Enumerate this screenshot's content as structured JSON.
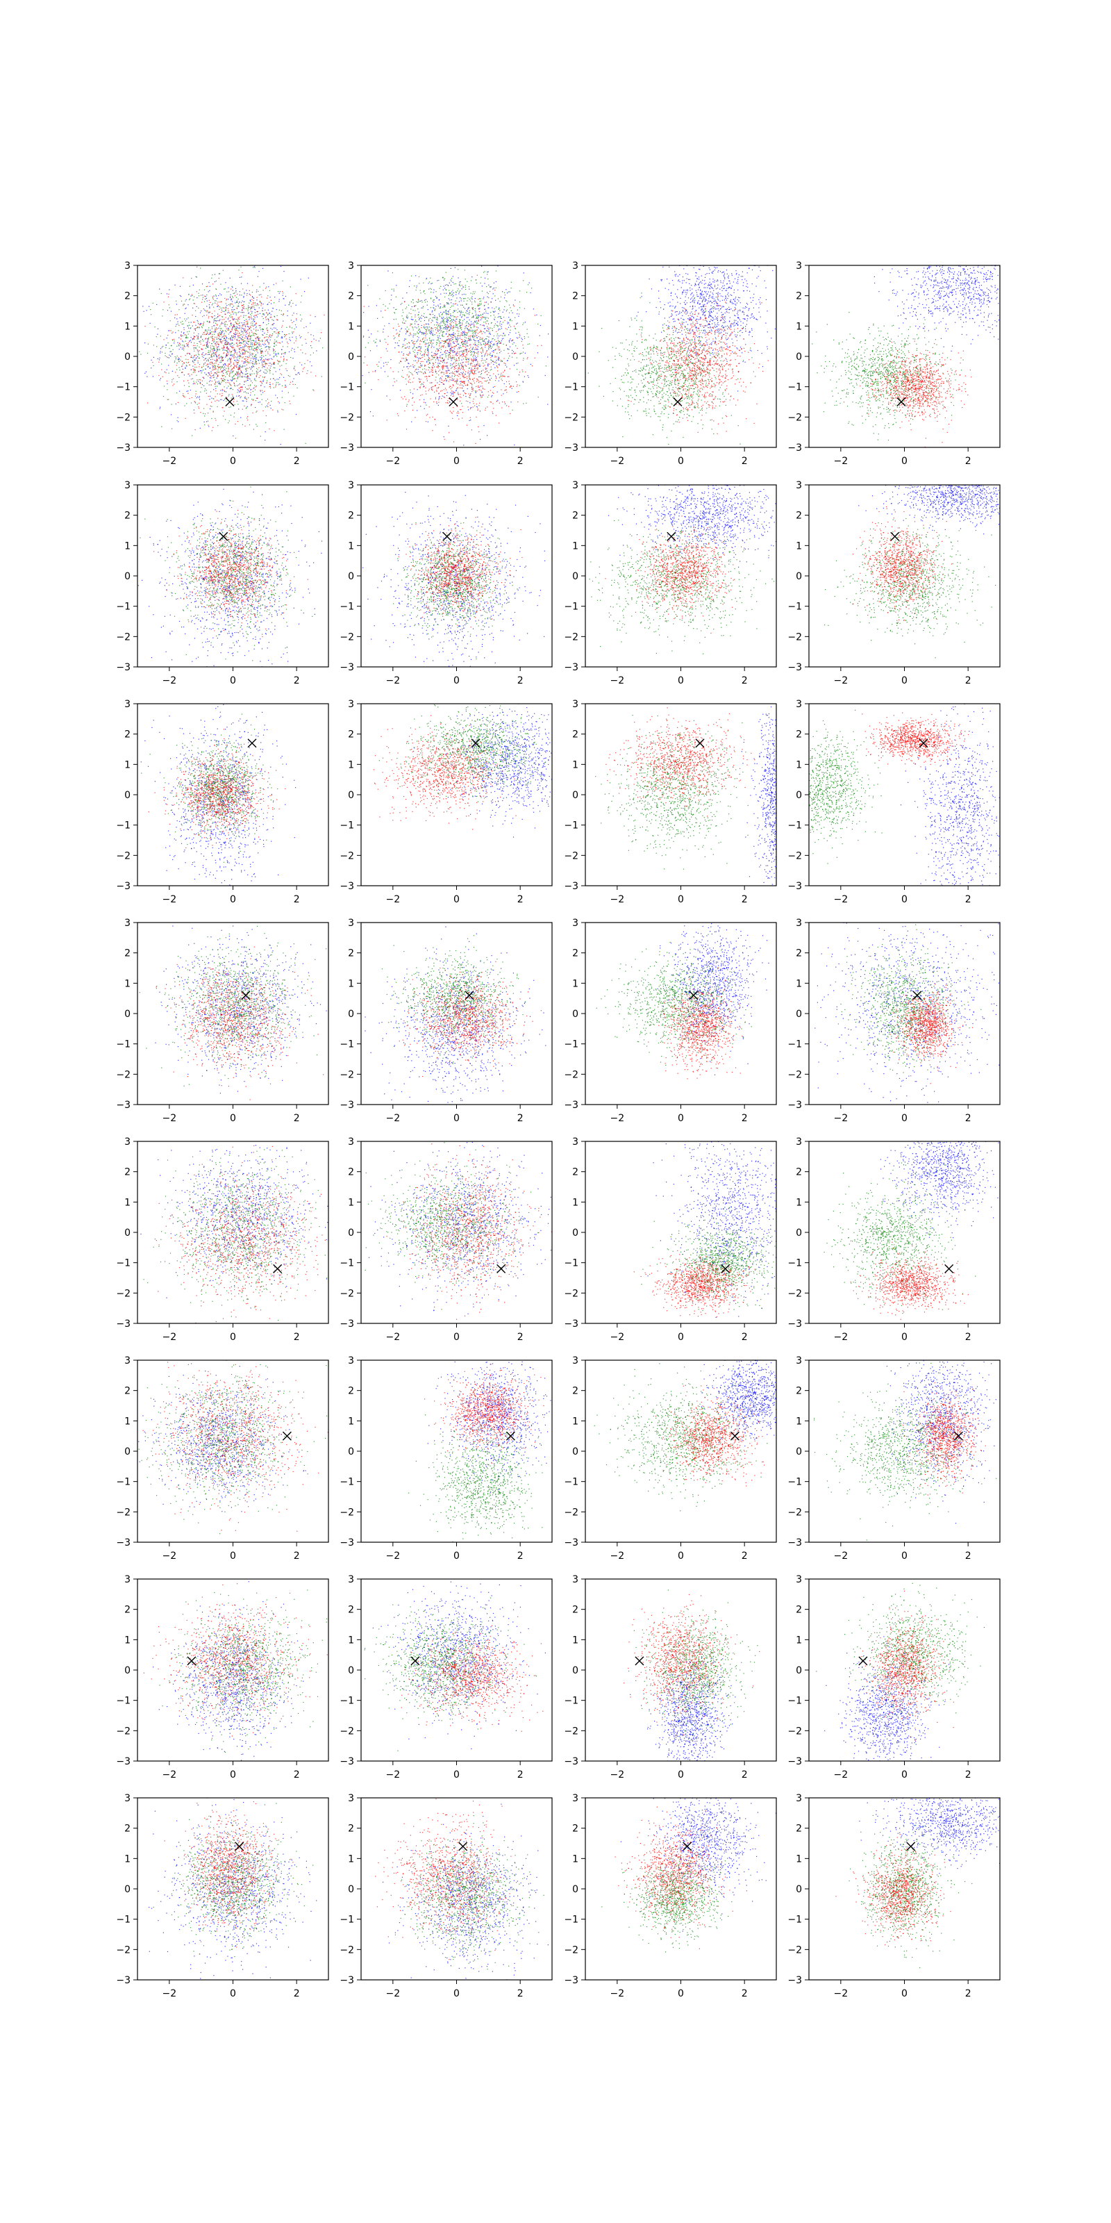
{
  "chart_data": {
    "type": "scatter",
    "layout": {
      "rows": 8,
      "cols": 4
    },
    "shared_axes": {
      "xlim": [
        -3,
        3
      ],
      "ylim": [
        -3,
        3
      ],
      "xticks": [
        -2,
        0,
        2
      ],
      "yticks": [
        -3,
        -2,
        -1,
        0,
        1,
        2,
        3
      ],
      "grid": false
    },
    "series_colors": {
      "red": "#ff0000",
      "green": "#008000",
      "blue": "#0000ff",
      "marker": "#000000"
    },
    "marker_glyph": "x",
    "rows": [
      {
        "marker": [
          -0.1,
          -1.5
        ],
        "panels": [
          {
            "blue": [
              0.0,
              0.4,
              1.1,
              1.1
            ],
            "green": [
              0.0,
              0.3,
              1.1,
              1.1
            ],
            "red": [
              0.0,
              0.2,
              1.0,
              1.0
            ]
          },
          {
            "green": [
              0.0,
              0.9,
              1.1,
              0.9
            ],
            "blue": [
              0.0,
              0.5,
              1.1,
              1.0
            ],
            "red": [
              0.0,
              -0.3,
              0.9,
              0.9
            ]
          },
          {
            "blue": [
              1.0,
              1.6,
              0.8,
              0.8
            ],
            "green": [
              -0.3,
              -0.6,
              0.8,
              0.8
            ],
            "red": [
              0.6,
              -0.2,
              0.7,
              0.8
            ]
          },
          {
            "blue": [
              1.8,
              2.3,
              1.0,
              0.7
            ],
            "green": [
              -0.5,
              -0.6,
              0.8,
              0.7
            ],
            "red": [
              0.4,
              -1.0,
              0.6,
              0.5
            ]
          }
        ]
      },
      {
        "marker": [
          -0.3,
          1.3
        ],
        "panels": [
          {
            "blue": [
              0.0,
              -0.2,
              1.0,
              1.2
            ],
            "green": [
              0.0,
              0.0,
              0.8,
              0.9
            ],
            "red": [
              0.0,
              0.1,
              0.7,
              0.7
            ]
          },
          {
            "blue": [
              0.0,
              -0.3,
              1.0,
              1.2
            ],
            "green": [
              -0.1,
              -0.2,
              0.7,
              0.7
            ],
            "red": [
              0.0,
              0.1,
              0.6,
              0.6
            ]
          },
          {
            "blue": [
              0.8,
              2.0,
              1.0,
              0.6
            ],
            "green": [
              -0.2,
              -0.3,
              1.1,
              0.8
            ],
            "red": [
              0.1,
              0.1,
              0.6,
              0.6
            ]
          },
          {
            "blue": [
              1.8,
              2.6,
              1.0,
              0.4
            ],
            "green": [
              0.2,
              -0.2,
              0.9,
              0.8
            ],
            "red": [
              -0.1,
              0.3,
              0.5,
              0.6
            ]
          }
        ]
      },
      {
        "marker": [
          0.6,
          1.7
        ],
        "panels": [
          {
            "blue": [
              -0.4,
              -0.2,
              0.8,
              1.3
            ],
            "green": [
              -0.4,
              0.2,
              0.6,
              0.7
            ],
            "red": [
              -0.4,
              0.0,
              0.6,
              0.6
            ]
          },
          {
            "blue": [
              1.8,
              1.0,
              0.8,
              0.8
            ],
            "green": [
              0.6,
              1.5,
              0.9,
              0.6
            ],
            "red": [
              -0.4,
              0.7,
              0.8,
              0.6
            ]
          },
          {
            "blue": [
              3.0,
              0.0,
              0.3,
              1.5
            ],
            "green": [
              -0.2,
              0.0,
              0.9,
              0.9
            ],
            "red": [
              0.0,
              1.1,
              0.8,
              0.6
            ]
          },
          {
            "blue": [
              1.8,
              -0.6,
              0.6,
              1.4
            ],
            "green": [
              -2.4,
              0.3,
              0.6,
              0.8
            ],
            "red": [
              0.3,
              1.8,
              0.6,
              0.3
            ]
          }
        ]
      },
      {
        "marker": [
          0.4,
          0.6
        ],
        "panels": [
          {
            "blue": [
              0.2,
              0.2,
              1.0,
              1.0
            ],
            "green": [
              0.1,
              0.2,
              0.9,
              0.9
            ],
            "red": [
              0.0,
              -0.2,
              0.8,
              0.8
            ]
          },
          {
            "blue": [
              0.0,
              -0.6,
              1.0,
              1.1
            ],
            "green": [
              0.0,
              0.5,
              0.8,
              0.7
            ],
            "red": [
              0.3,
              -0.2,
              0.7,
              0.6
            ]
          },
          {
            "blue": [
              1.0,
              1.0,
              0.6,
              0.9
            ],
            "green": [
              -0.1,
              0.3,
              0.8,
              0.7
            ],
            "red": [
              0.6,
              -0.5,
              0.5,
              0.6
            ]
          },
          {
            "blue": [
              0.3,
              0.3,
              1.3,
              1.3
            ],
            "green": [
              0.0,
              0.2,
              0.7,
              0.8
            ],
            "red": [
              0.7,
              -0.4,
              0.4,
              0.5
            ]
          }
        ]
      },
      {
        "marker": [
          1.4,
          -1.2
        ],
        "panels": [
          {
            "blue": [
              0.3,
              0.6,
              1.0,
              1.0
            ],
            "green": [
              0.2,
              0.0,
              1.0,
              1.0
            ],
            "red": [
              0.4,
              -0.3,
              1.0,
              1.0
            ]
          },
          {
            "blue": [
              0.3,
              0.3,
              1.1,
              1.1
            ],
            "green": [
              -0.3,
              0.3,
              0.9,
              0.8
            ],
            "red": [
              0.4,
              0.0,
              0.8,
              1.0
            ]
          },
          {
            "blue": [
              1.6,
              0.8,
              0.8,
              1.2
            ],
            "green": [
              1.3,
              -1.0,
              0.7,
              0.6
            ],
            "red": [
              0.6,
              -1.7,
              0.6,
              0.4
            ]
          },
          {
            "blue": [
              1.2,
              2.1,
              0.7,
              0.8
            ],
            "green": [
              -0.3,
              -0.2,
              0.8,
              0.8
            ],
            "red": [
              0.2,
              -1.7,
              0.6,
              0.4
            ]
          }
        ]
      },
      {
        "marker": [
          1.7,
          0.5
        ],
        "panels": [
          {
            "blue": [
              -0.4,
              0.3,
              0.9,
              0.9
            ],
            "green": [
              -0.3,
              0.4,
              1.0,
              1.0
            ],
            "red": [
              -0.1,
              0.6,
              1.0,
              1.0
            ]
          },
          {
            "blue": [
              1.3,
              1.2,
              0.7,
              0.9
            ],
            "green": [
              0.8,
              -1.1,
              0.7,
              0.8
            ],
            "red": [
              1.0,
              1.3,
              0.6,
              0.5
            ]
          },
          {
            "blue": [
              2.2,
              1.8,
              0.6,
              0.6
            ],
            "green": [
              0.0,
              0.4,
              0.9,
              0.8
            ],
            "red": [
              1.0,
              0.4,
              0.6,
              0.6
            ]
          },
          {
            "blue": [
              1.2,
              1.2,
              0.7,
              1.0
            ],
            "green": [
              -0.1,
              0.0,
              0.9,
              0.8
            ],
            "red": [
              1.3,
              0.5,
              0.4,
              0.6
            ]
          }
        ]
      },
      {
        "marker": [
          -1.3,
          0.3
        ],
        "panels": [
          {
            "blue": [
              0.0,
              -0.4,
              0.8,
              1.0
            ],
            "green": [
              0.4,
              0.1,
              0.9,
              0.9
            ],
            "red": [
              0.0,
              0.3,
              0.9,
              0.8
            ]
          },
          {
            "blue": [
              0.0,
              0.5,
              0.9,
              1.0
            ],
            "green": [
              -0.5,
              0.2,
              0.8,
              0.8
            ],
            "red": [
              0.5,
              -0.2,
              0.8,
              0.6
            ]
          },
          {
            "blue": [
              0.3,
              -1.5,
              0.5,
              0.8
            ],
            "green": [
              0.5,
              0.0,
              0.7,
              0.8
            ],
            "red": [
              0.0,
              0.3,
              0.6,
              0.8
            ]
          },
          {
            "blue": [
              -0.6,
              -1.5,
              0.6,
              0.8
            ],
            "green": [
              0.3,
              0.6,
              0.8,
              0.8
            ],
            "red": [
              0.0,
              0.0,
              0.5,
              0.7
            ]
          }
        ]
      },
      {
        "marker": [
          0.2,
          1.4
        ],
        "panels": [
          {
            "blue": [
              0.0,
              0.0,
              1.0,
              1.1
            ],
            "green": [
              0.0,
              0.2,
              0.8,
              0.8
            ],
            "red": [
              -0.1,
              0.6,
              0.6,
              0.8
            ]
          },
          {
            "blue": [
              0.5,
              -0.4,
              0.9,
              1.0
            ],
            "green": [
              0.3,
              -0.3,
              0.8,
              0.8
            ],
            "red": [
              -0.2,
              0.4,
              0.8,
              0.9
            ]
          },
          {
            "blue": [
              0.8,
              1.6,
              0.7,
              0.8
            ],
            "green": [
              -0.1,
              -0.3,
              0.6,
              0.6
            ],
            "red": [
              -0.2,
              0.5,
              0.6,
              0.7
            ]
          },
          {
            "blue": [
              1.5,
              2.3,
              0.9,
              0.6
            ],
            "green": [
              0.0,
              0.0,
              0.6,
              0.8
            ],
            "red": [
              -0.1,
              -0.2,
              0.5,
              0.6
            ]
          }
        ]
      }
    ]
  }
}
